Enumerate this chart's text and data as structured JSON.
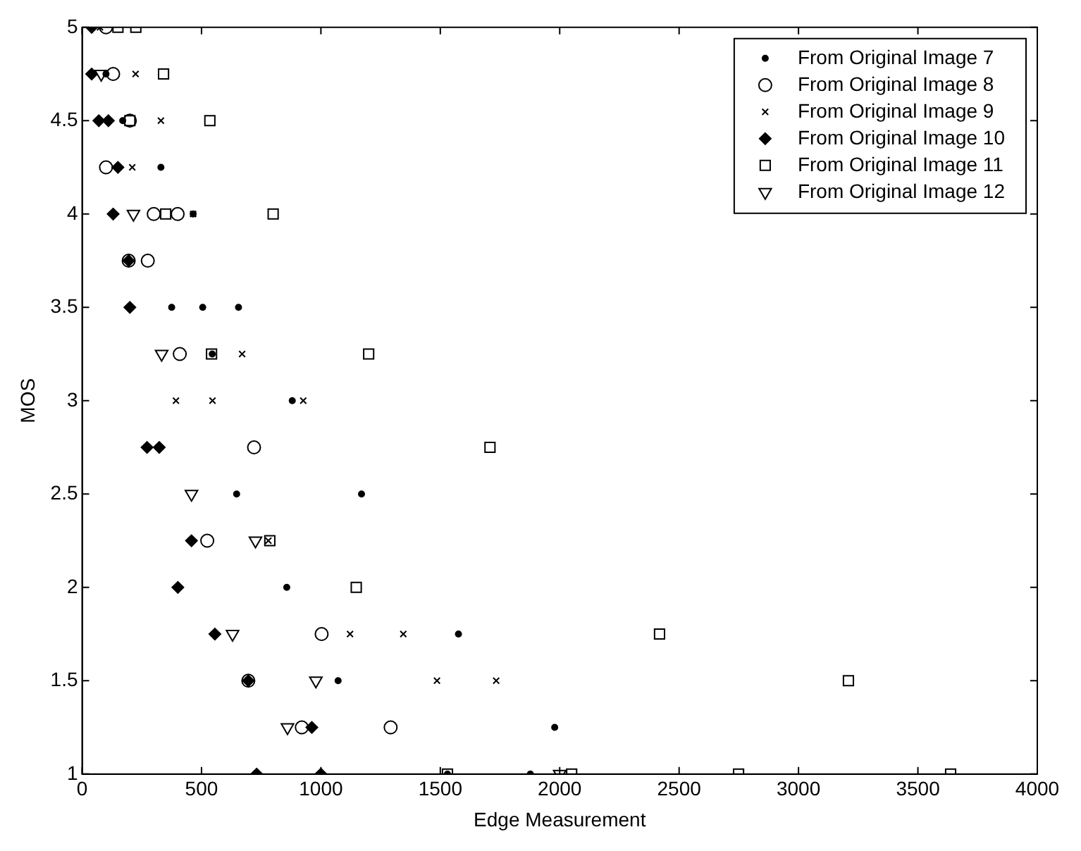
{
  "chart_data": {
    "type": "scatter",
    "xlabel": "Edge Measurement",
    "ylabel": "MOS",
    "xlim": [
      0,
      4000
    ],
    "xticks": [
      0,
      500,
      1000,
      1500,
      2000,
      2500,
      3000,
      3500,
      4000
    ],
    "ylim": [
      1,
      5
    ],
    "yticks": [
      1,
      1.5,
      2,
      2.5,
      3,
      3.5,
      4,
      4.5,
      5
    ],
    "grid": false,
    "legend": "top right",
    "series": [
      {
        "name": "From Original Image 7",
        "color": "#000000",
        "marker": "circle",
        "x": [
          100,
          170,
          330,
          465,
          375,
          505,
          655,
          545,
          880,
          647,
          1170,
          857,
          1576,
          1072,
          1979,
          1530,
          1877
        ],
        "values": [
          4.75,
          4.5,
          4.25,
          4,
          3.5,
          3.5,
          3.5,
          3.25,
          3,
          2.5,
          2.5,
          2,
          1.75,
          1.5,
          1.25,
          1,
          1
        ]
      },
      {
        "name": "From Original Image 8",
        "color": "#000000",
        "marker": "circle",
        "x": [
          100,
          130,
          200,
          100,
          300,
          400,
          195,
          275,
          409,
          720,
          524,
          1003,
          696,
          920,
          1292
        ],
        "values": [
          5,
          4.75,
          4.5,
          4.25,
          4,
          4,
          3.75,
          3.75,
          3.25,
          2.75,
          2.25,
          1.75,
          1.5,
          1.25,
          1.25
        ]
      },
      {
        "name": "From Original Image 9",
        "color": "#000000",
        "marker": "cross",
        "x": [
          75,
          224,
          330,
          210,
          465,
          670,
          393,
          546,
          926,
          780,
          1122,
          1345,
          1486,
          1734
        ],
        "values": [
          5,
          4.75,
          4.5,
          4.25,
          4,
          3.25,
          3,
          3,
          3,
          2.25,
          1.75,
          1.75,
          1.5,
          1.5
        ]
      },
      {
        "name": "From Original Image 10",
        "color": "#000000",
        "marker": "diamond",
        "x": [
          40,
          40,
          70,
          110,
          150,
          130,
          195,
          200,
          272,
          323,
          458,
          401,
          556,
          696,
          962,
          731,
          1000
        ],
        "values": [
          5,
          4.75,
          4.5,
          4.5,
          4.25,
          4,
          3.75,
          3.5,
          2.75,
          2.75,
          2.25,
          2,
          1.75,
          1.5,
          1.25,
          1,
          1
        ]
      },
      {
        "name": "From Original Image 11",
        "color": "#000000",
        "marker": "square",
        "x": [
          150,
          225,
          341,
          200,
          535,
          350,
          800,
          542,
          1200,
          1708,
          786,
          1148,
          2418,
          3209,
          1530,
          2050,
          2749,
          3637
        ],
        "values": [
          5,
          5,
          4.75,
          4.5,
          4.5,
          4,
          4,
          3.25,
          3.25,
          2.75,
          2.25,
          2,
          1.75,
          1.5,
          1,
          1,
          1,
          1
        ]
      },
      {
        "name": "From Original Image 12",
        "color": "#000000",
        "marker": "triangle",
        "x": [
          80,
          215,
          333,
          458,
          726,
          630,
          979,
          860,
          2000
        ],
        "values": [
          4.75,
          4,
          3.25,
          2.5,
          2.25,
          1.75,
          1.5,
          1.25,
          1
        ]
      }
    ]
  }
}
